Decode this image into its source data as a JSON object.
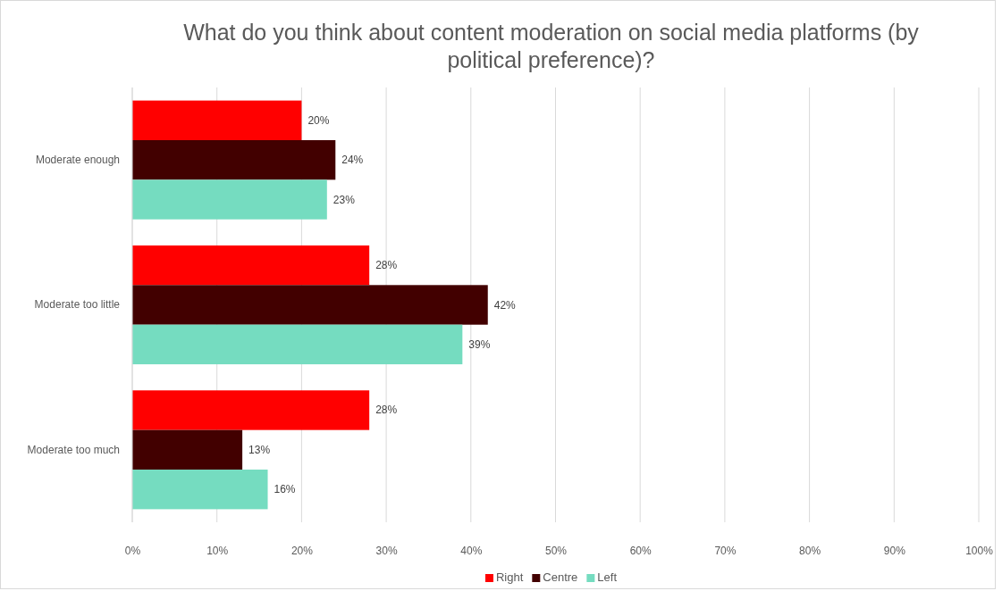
{
  "chart_data": {
    "type": "bar",
    "orientation": "horizontal",
    "title": "What do you think about content moderation on social media platforms (by political preference)?",
    "categories": [
      "Moderate enough",
      "Moderate too little",
      "Moderate too much"
    ],
    "series": [
      {
        "name": "Right",
        "color": "#ff0000",
        "values": [
          20,
          28,
          28
        ],
        "value_labels": [
          "20%",
          "28%",
          "28%"
        ]
      },
      {
        "name": "Centre",
        "color": "#420000",
        "values": [
          24,
          42,
          13
        ],
        "value_labels": [
          "24%",
          "42%",
          "13%"
        ]
      },
      {
        "name": "Left",
        "color": "#75dcc0",
        "values": [
          23,
          39,
          16
        ],
        "value_labels": [
          "23%",
          "39%",
          "16%"
        ]
      }
    ],
    "xlim": [
      0,
      100
    ],
    "xticks": [
      {
        "value": 0,
        "label": "0%"
      },
      {
        "value": 10,
        "label": "10%"
      },
      {
        "value": 20,
        "label": "20%"
      },
      {
        "value": 30,
        "label": "30%"
      },
      {
        "value": 40,
        "label": "40%"
      },
      {
        "value": 50,
        "label": "50%"
      },
      {
        "value": 60,
        "label": "60%"
      },
      {
        "value": 70,
        "label": "70%"
      },
      {
        "value": 80,
        "label": "80%"
      },
      {
        "value": 90,
        "label": "90%"
      },
      {
        "value": 100,
        "label": "100%"
      }
    ],
    "grid": "x",
    "legend": "bottom"
  }
}
